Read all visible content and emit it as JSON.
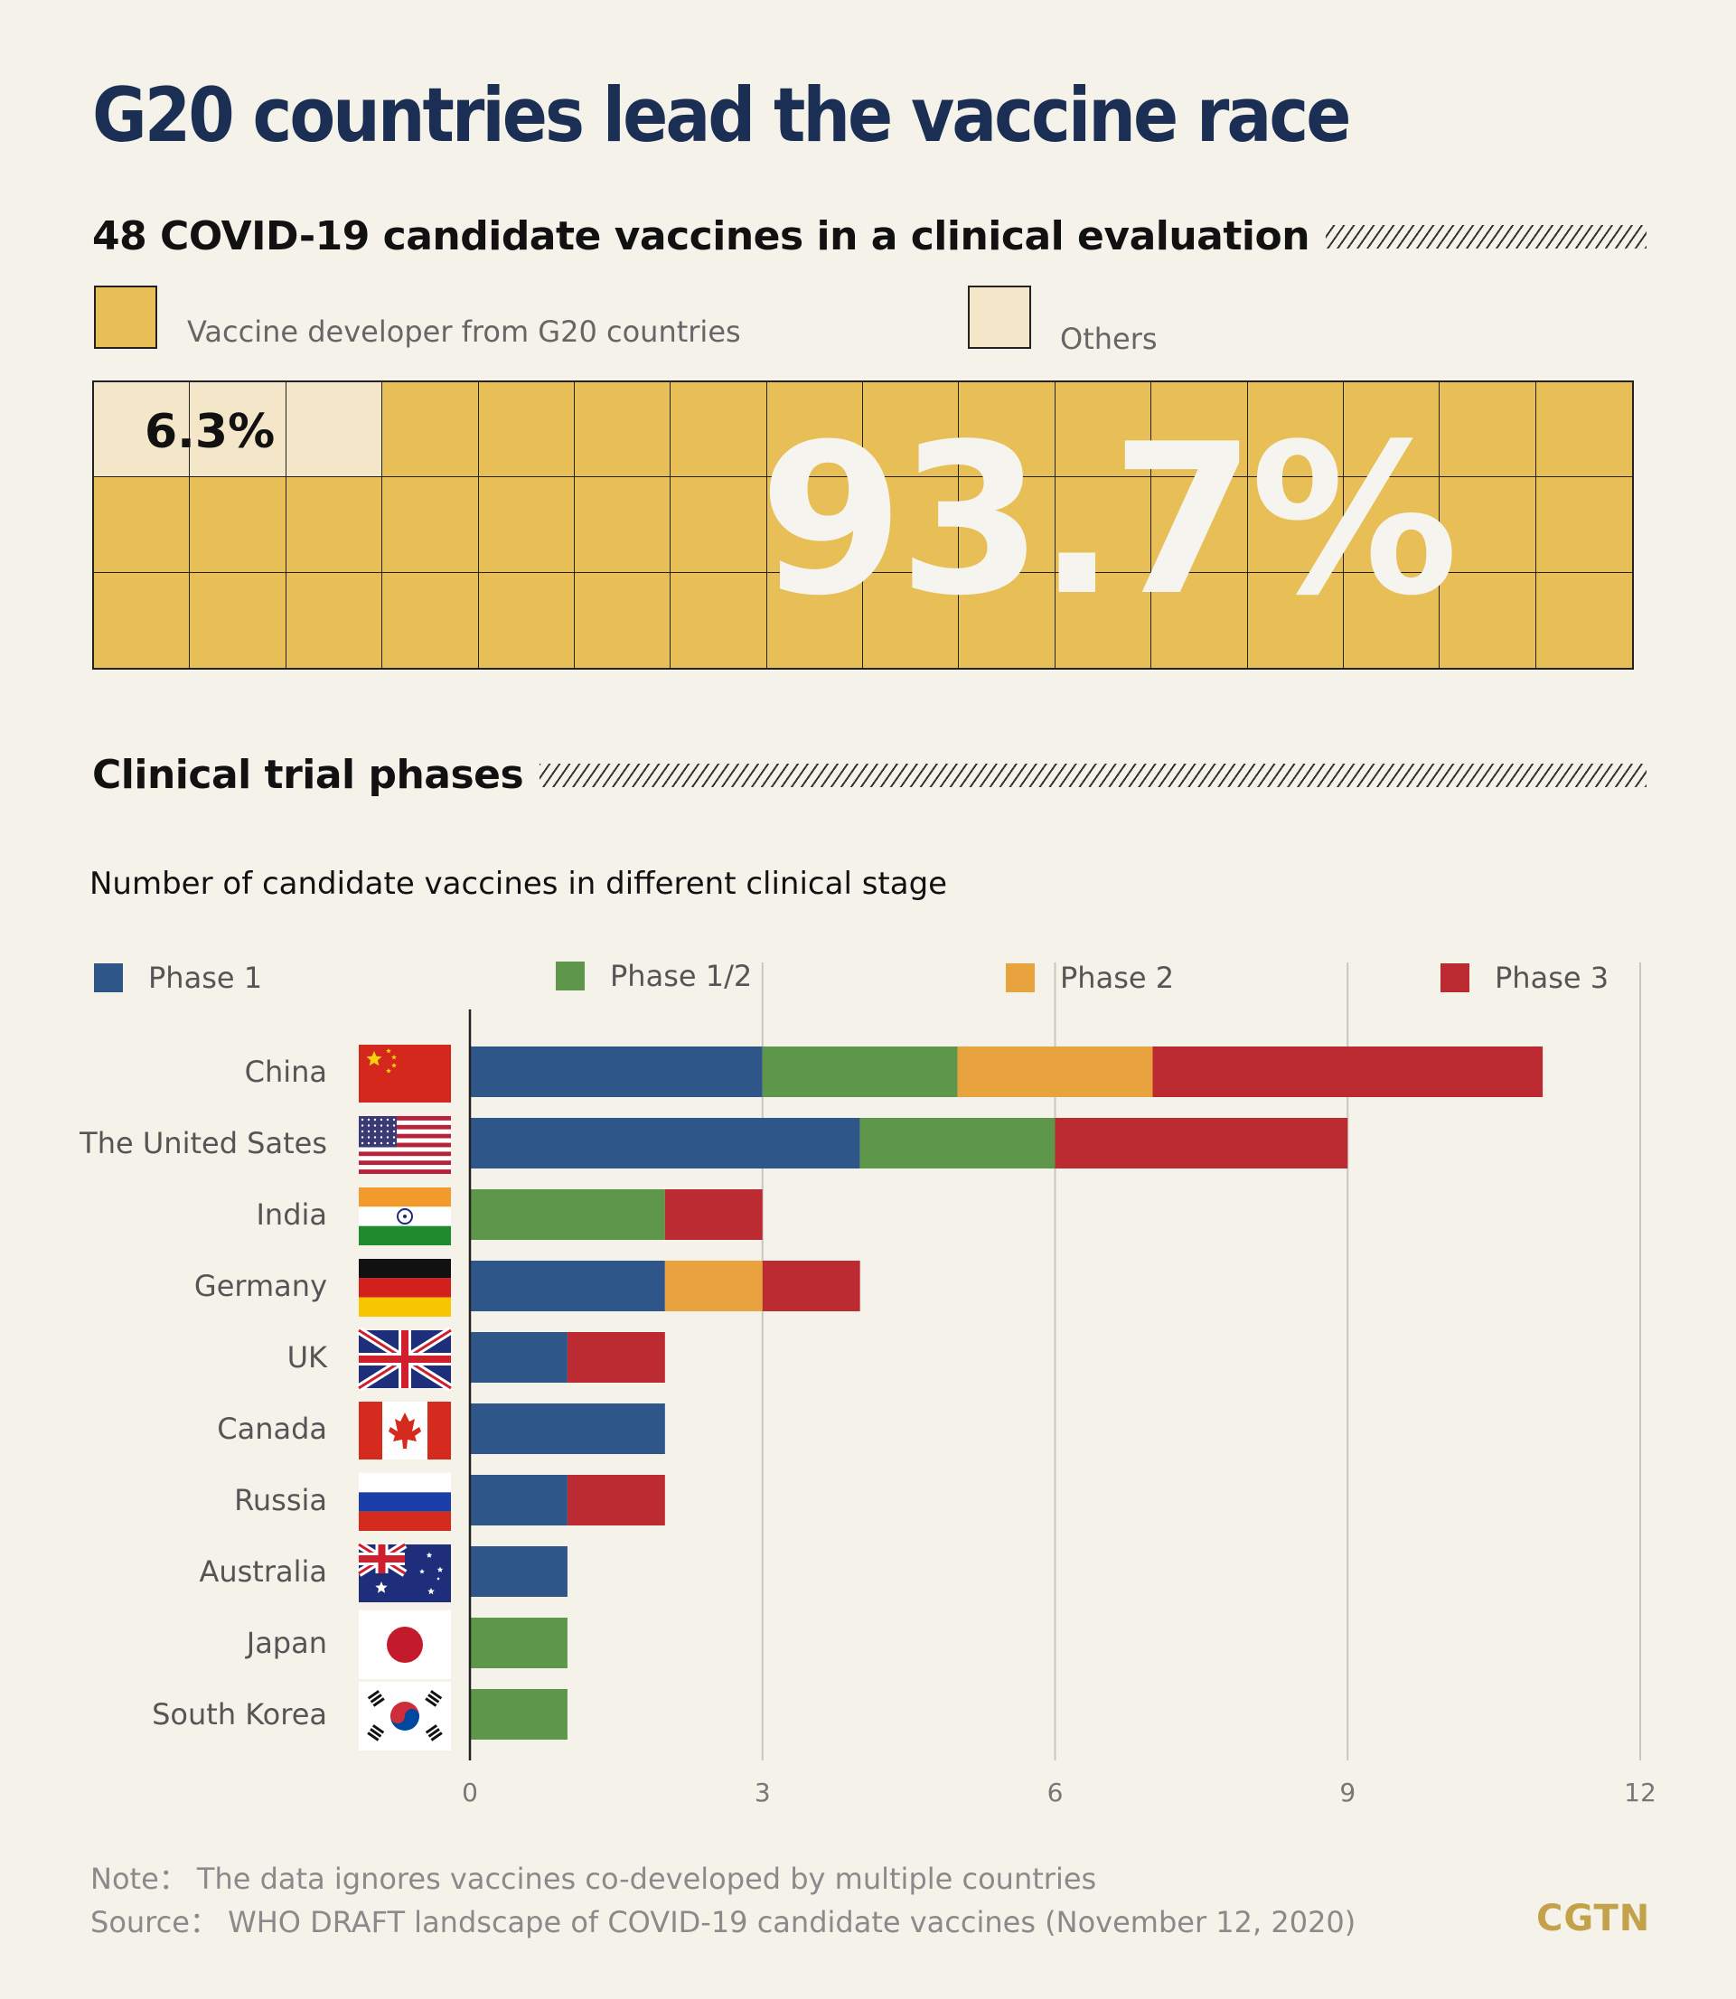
{
  "title": "G20 countries lead the vaccine race",
  "section1": {
    "heading": "48 COVID-19 candidate vaccines in a clinical evaluation",
    "legend_g20": "Vaccine developer from G20 countries",
    "legend_others": "Others",
    "pct_others": "6.3%",
    "pct_g20": "93.7%",
    "waffle_total": 48,
    "waffle_others": 3
  },
  "section2": {
    "heading": "Clinical trial phases",
    "subtitle": "Number of candidate vaccines in different clinical stage"
  },
  "colors": {
    "g20": "#e8bf57",
    "others": "#f4e6c8",
    "phase1": "#2e5689",
    "phase12": "#5e964a",
    "phase2": "#e8a33f",
    "phase3": "#bd2b32"
  },
  "chart_data": {
    "type": "bar",
    "orientation": "horizontal",
    "stacked": true,
    "categories": [
      "China",
      "The United Sates",
      "India",
      "Germany",
      "UK",
      "Canada",
      "Russia",
      "Australia",
      "Japan",
      "South Korea"
    ],
    "flags": [
      "china-flag-icon",
      "usa-flag-icon",
      "india-flag-icon",
      "germany-flag-icon",
      "uk-flag-icon",
      "canada-flag-icon",
      "russia-flag-icon",
      "australia-flag-icon",
      "japan-flag-icon",
      "south-korea-flag-icon"
    ],
    "series": [
      {
        "name": "Phase 1",
        "color": "#2e5689",
        "values": [
          3,
          4,
          0,
          2,
          1,
          2,
          1,
          1,
          0,
          0
        ]
      },
      {
        "name": "Phase 1/2",
        "color": "#5e964a",
        "values": [
          2,
          2,
          2,
          0,
          0,
          0,
          0,
          0,
          1,
          1
        ]
      },
      {
        "name": "Phase 2",
        "color": "#e8a33f",
        "values": [
          2,
          0,
          0,
          1,
          0,
          0,
          0,
          0,
          0,
          0
        ]
      },
      {
        "name": "Phase 3",
        "color": "#bd2b32",
        "values": [
          4,
          3,
          1,
          1,
          1,
          0,
          1,
          0,
          0,
          0
        ]
      }
    ],
    "xlim": [
      0,
      12
    ],
    "xticks": [
      "0",
      "3",
      "6",
      "9",
      "12"
    ],
    "grid": true,
    "legend_position": "top"
  },
  "notes": {
    "note": "Note： The data ignores vaccines co-developed by multiple countries",
    "source": "Source： WHO DRAFT landscape of COVID-19 candidate vaccines (November 12, 2020)"
  },
  "logo": "CGTN"
}
